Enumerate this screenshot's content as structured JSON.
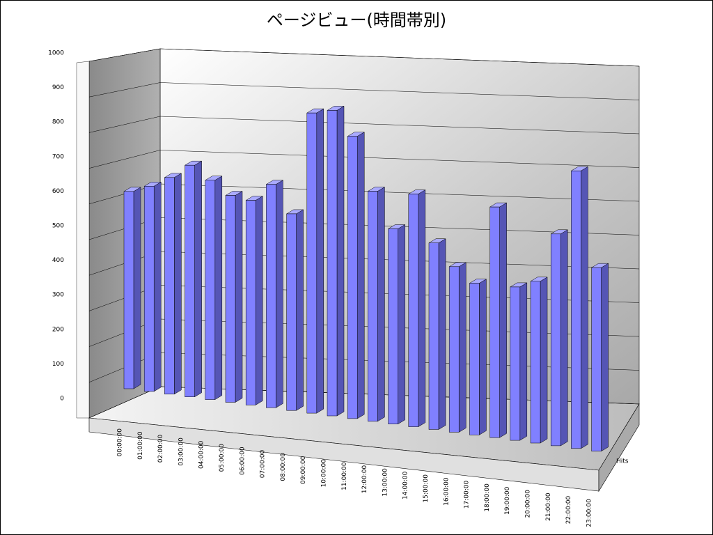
{
  "chart_data": {
    "type": "bar",
    "title": "ページビュー(時間帯別)",
    "categories": [
      "00:00:00",
      "01:00:00",
      "02:00:00",
      "03:00:00",
      "04:00:00",
      "05:00:00",
      "06:00:00",
      "07:00:00",
      "08:00:00",
      "09:00:00",
      "10:00:00",
      "11:00:00",
      "12:00:00",
      "13:00:00",
      "14:00:00",
      "15:00:00",
      "16:00:00",
      "17:00:00",
      "18:00:00",
      "19:00:00",
      "20:00:00",
      "21:00:00",
      "22:00:00",
      "23:00:00"
    ],
    "series": [
      {
        "name": "Hits",
        "color": "#8080ff",
        "values": [
          590,
          610,
          640,
          680,
          640,
          600,
          590,
          640,
          560,
          850,
          860,
          790,
          640,
          540,
          640,
          510,
          450,
          410,
          620,
          410,
          430,
          560,
          730,
          480
        ]
      }
    ],
    "ylim": [
      0,
      1000
    ],
    "yticks": [
      0,
      100,
      200,
      300,
      400,
      500,
      600,
      700,
      800,
      900,
      1000
    ],
    "grid": true
  }
}
